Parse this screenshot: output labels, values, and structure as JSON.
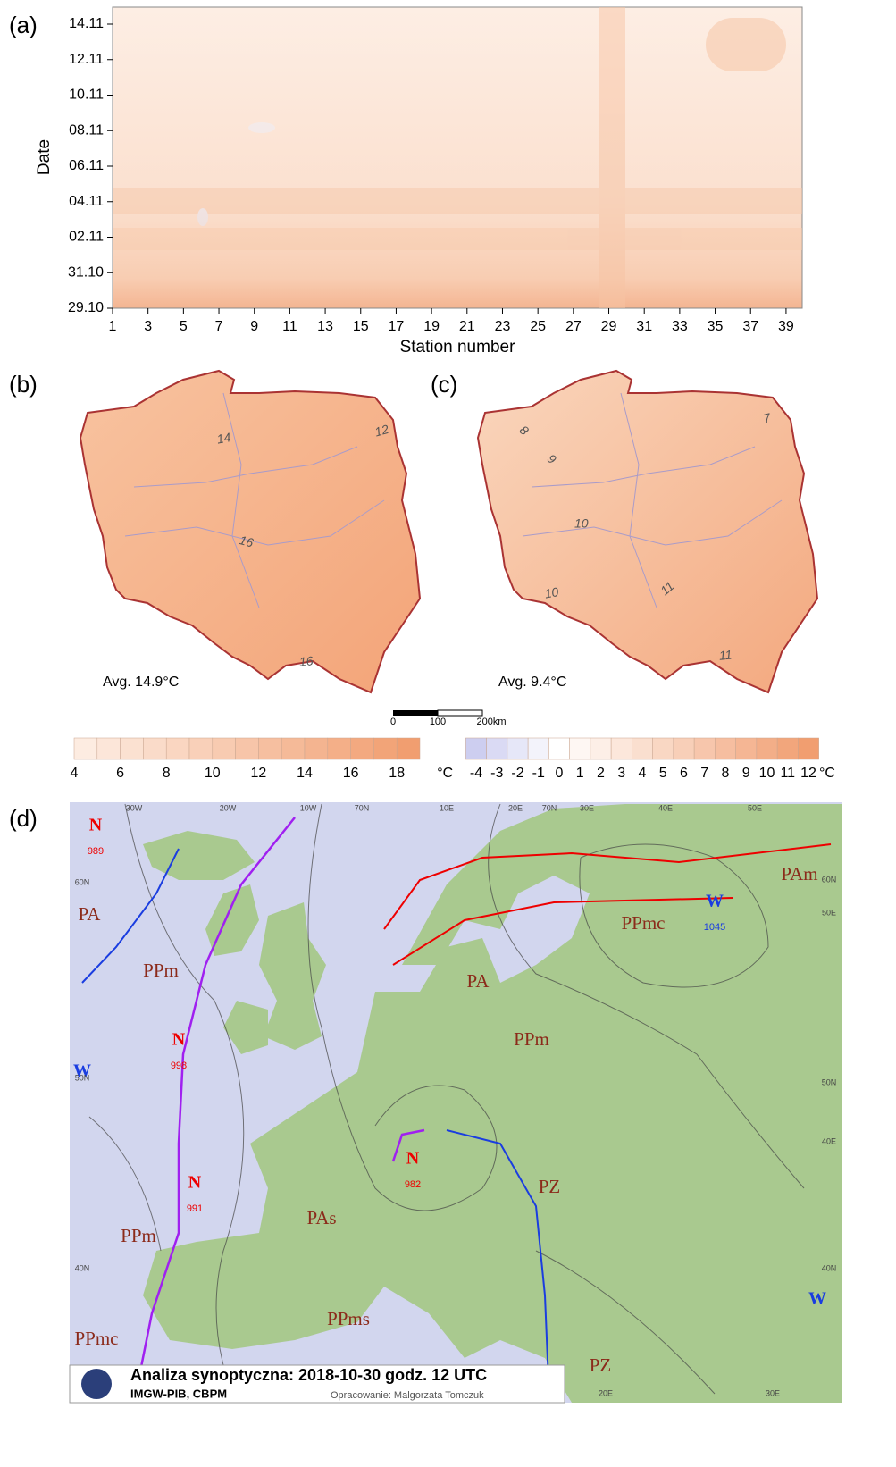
{
  "panel_a": {
    "label": "(a)",
    "y_label": "Date",
    "x_label": "Station number",
    "y_ticks": [
      "29.10",
      "31.10",
      "02.11",
      "04.11",
      "06.11",
      "08.11",
      "10.11",
      "12.11",
      "14.11"
    ],
    "x_ticks": [
      1,
      3,
      5,
      7,
      9,
      11,
      13,
      15,
      17,
      19,
      21,
      23,
      25,
      27,
      29,
      31,
      33,
      35,
      37,
      39
    ]
  },
  "panel_b": {
    "label": "(b)",
    "contours": [
      "14",
      "12",
      "16",
      "16"
    ],
    "avg": "Avg. 14.9°C"
  },
  "panel_c": {
    "label": "(c)",
    "contours": [
      "8",
      "9",
      "10",
      "10",
      "11",
      "11",
      "7"
    ],
    "avg": "Avg. 9.4°C"
  },
  "scale_bar": {
    "ticks": [
      "0",
      "100",
      "200km"
    ]
  },
  "colorbar_b": {
    "ticks": [
      4,
      6,
      8,
      10,
      12,
      14,
      16,
      18
    ],
    "unit": "°C"
  },
  "colorbar_c": {
    "ticks": [
      -4,
      -3,
      -2,
      -1,
      0,
      1,
      2,
      3,
      4,
      5,
      6,
      7,
      8,
      9,
      10,
      11,
      12
    ],
    "unit": "°C"
  },
  "panel_d": {
    "label": "(d)",
    "centers": [
      {
        "letter": "N",
        "value": "989"
      },
      {
        "letter": "N",
        "value": "998"
      },
      {
        "letter": "N",
        "value": "991"
      },
      {
        "letter": "N",
        "value": "982"
      },
      {
        "letter": "W",
        "value": "1045"
      },
      {
        "letter": "W"
      },
      {
        "letter": "W"
      }
    ],
    "air_masses": [
      "PA",
      "PPm",
      "PAm",
      "PA",
      "PPm",
      "PPmc",
      "PAs",
      "PZ",
      "PPm",
      "PPms",
      "PPmc",
      "PZ"
    ],
    "grid_labels": [
      "30W",
      "20W",
      "10W",
      "70N",
      "10E",
      "20E",
      "70N",
      "30E",
      "40E",
      "50E",
      "60N",
      "50N",
      "40N",
      "60N",
      "50E",
      "50N",
      "40E",
      "40N",
      "30E",
      "20E"
    ],
    "title": "Analiza synoptyczna: 2018-10-30 godz. 12 UTC",
    "org": "IMGW-PIB, CBPM",
    "author": "Opracowanie: Malgorzata Tomczuk"
  }
}
